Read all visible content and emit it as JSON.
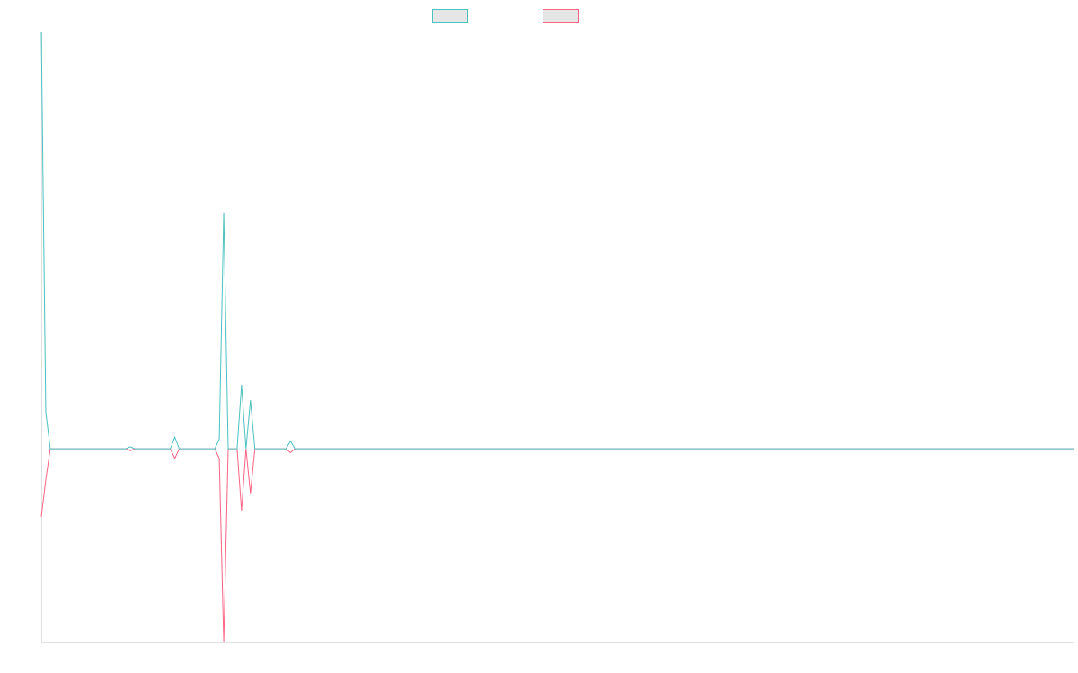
{
  "chart_data": {
    "type": "line",
    "ylim": [
      -1,
      2.15
    ],
    "series": [
      {
        "color": "#4bc0c0",
        "values": [
          2.15,
          0.19,
          0,
          0,
          0,
          0,
          0,
          0,
          0,
          0,
          0,
          0,
          0,
          0,
          0,
          0,
          0,
          0,
          0,
          0,
          0.01,
          0,
          0,
          0,
          0,
          0,
          0,
          0,
          0,
          0,
          0.06,
          0,
          0,
          0,
          0,
          0,
          0,
          0,
          0,
          0,
          0.05,
          1.22,
          0,
          0,
          0,
          0.33,
          0,
          0.25,
          0,
          0,
          0,
          0,
          0,
          0,
          0,
          0,
          0.04,
          0,
          0,
          0,
          0,
          0,
          0,
          0,
          0,
          0,
          0,
          0,
          0,
          0,
          0,
          0,
          0,
          0,
          0,
          0,
          0,
          0,
          0,
          0,
          0,
          0,
          0,
          0,
          0,
          0,
          0,
          0,
          0,
          0,
          0,
          0,
          0,
          0,
          0,
          0,
          0,
          0,
          0,
          0,
          0,
          0,
          0,
          0,
          0,
          0,
          0,
          0,
          0,
          0,
          0,
          0,
          0,
          0,
          0,
          0,
          0,
          0,
          0,
          0,
          0,
          0,
          0,
          0,
          0,
          0,
          0,
          0,
          0,
          0,
          0,
          0,
          0,
          0,
          0,
          0,
          0,
          0,
          0,
          0,
          0,
          0,
          0,
          0,
          0,
          0,
          0,
          0,
          0,
          0,
          0,
          0,
          0,
          0,
          0,
          0,
          0,
          0,
          0,
          0,
          0,
          0,
          0,
          0,
          0,
          0,
          0,
          0,
          0,
          0,
          0,
          0,
          0,
          0,
          0,
          0,
          0,
          0,
          0,
          0,
          0,
          0,
          0,
          0,
          0,
          0,
          0,
          0,
          0,
          0,
          0,
          0,
          0,
          0,
          0,
          0,
          0,
          0,
          0,
          0,
          0,
          0,
          0,
          0,
          0,
          0,
          0,
          0,
          0,
          0,
          0,
          0,
          0,
          0,
          0,
          0,
          0,
          0,
          0,
          0,
          0,
          0,
          0,
          0,
          0,
          0,
          0,
          0,
          0,
          0,
          0,
          0,
          0
        ]
      },
      {
        "color": "#ff6384",
        "values": [
          -0.35,
          -0.16,
          0,
          0,
          0,
          0,
          0,
          0,
          0,
          0,
          0,
          0,
          0,
          0,
          0,
          0,
          0,
          0,
          0,
          0,
          -0.01,
          0,
          0,
          0,
          0,
          0,
          0,
          0,
          0,
          0,
          -0.05,
          0,
          0,
          0,
          0,
          0,
          0,
          0,
          0,
          0,
          -0.05,
          -1,
          0,
          0,
          0,
          -0.32,
          0,
          -0.23,
          0,
          0,
          0,
          0,
          0,
          0,
          0,
          0,
          -0.02,
          0,
          0,
          0,
          0,
          0,
          0,
          0,
          0,
          0,
          0,
          0,
          0,
          0,
          0,
          0,
          0,
          0,
          0,
          0,
          0,
          0,
          0,
          0,
          0,
          0,
          0,
          0,
          0,
          0,
          0,
          0,
          0,
          0,
          0,
          0,
          0,
          0,
          0,
          0,
          0,
          0,
          0,
          0,
          0,
          0,
          0,
          0,
          0,
          0,
          0,
          0,
          0,
          0,
          0,
          0,
          0,
          0,
          0,
          0,
          0,
          0,
          0,
          0,
          0,
          0,
          0,
          0,
          0,
          0,
          0,
          0,
          0,
          0,
          0,
          0,
          0,
          0,
          0,
          0,
          0,
          0,
          0,
          0,
          0,
          0,
          0,
          0,
          0,
          0,
          0,
          0,
          0,
          0,
          0,
          0,
          0,
          0,
          0,
          0,
          0,
          0,
          0,
          0,
          0,
          0,
          0,
          0,
          0,
          0,
          0,
          0,
          0,
          0,
          0,
          0,
          0,
          0,
          0,
          0,
          0,
          0,
          0,
          0,
          0,
          0,
          0,
          0,
          0,
          0,
          0,
          0,
          0,
          0,
          0,
          0,
          0,
          0,
          0,
          0,
          0,
          0,
          0,
          0,
          0,
          0,
          0,
          0,
          0,
          0,
          0,
          0,
          0,
          0,
          0,
          0,
          0,
          0,
          0,
          0,
          0,
          0,
          0,
          0,
          0,
          0,
          0,
          0,
          0,
          0,
          0,
          0,
          0,
          0,
          0,
          0,
          0
        ]
      }
    ]
  }
}
